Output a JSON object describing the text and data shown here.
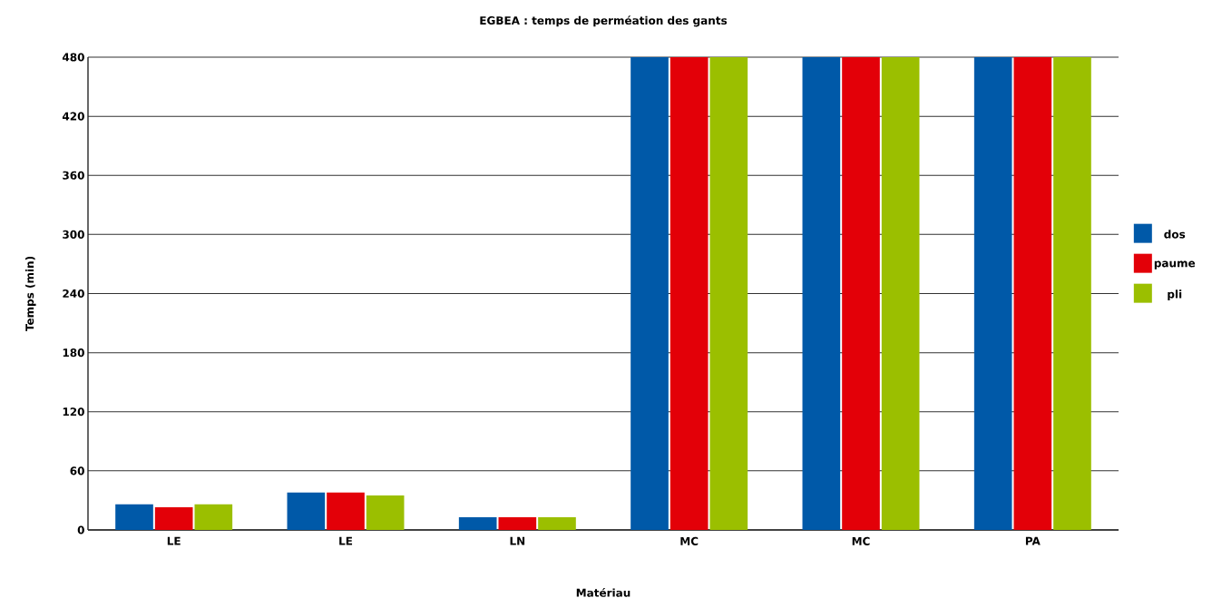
{
  "chart_data": {
    "type": "bar",
    "title": "EGBEA : temps de perméation des gants",
    "xlabel": "Matériau",
    "ylabel": "Temps (min)",
    "categories": [
      "LE",
      "LE",
      "LN",
      "MC",
      "MC",
      "PA"
    ],
    "series": [
      {
        "name": "dos",
        "color": "#0059a8",
        "values": [
          26,
          38,
          13,
          480,
          480,
          480
        ]
      },
      {
        "name": "paume",
        "color": "#e30008",
        "values": [
          23,
          38,
          13,
          480,
          480,
          480
        ]
      },
      {
        "name": "pli",
        "color": "#9bbf00",
        "values": [
          26,
          35,
          13,
          480,
          480,
          480
        ]
      }
    ],
    "ylim": [
      0,
      480
    ],
    "yticks": [
      0,
      60,
      120,
      180,
      240,
      300,
      360,
      420,
      480
    ],
    "grid": "y",
    "legend": "right"
  }
}
